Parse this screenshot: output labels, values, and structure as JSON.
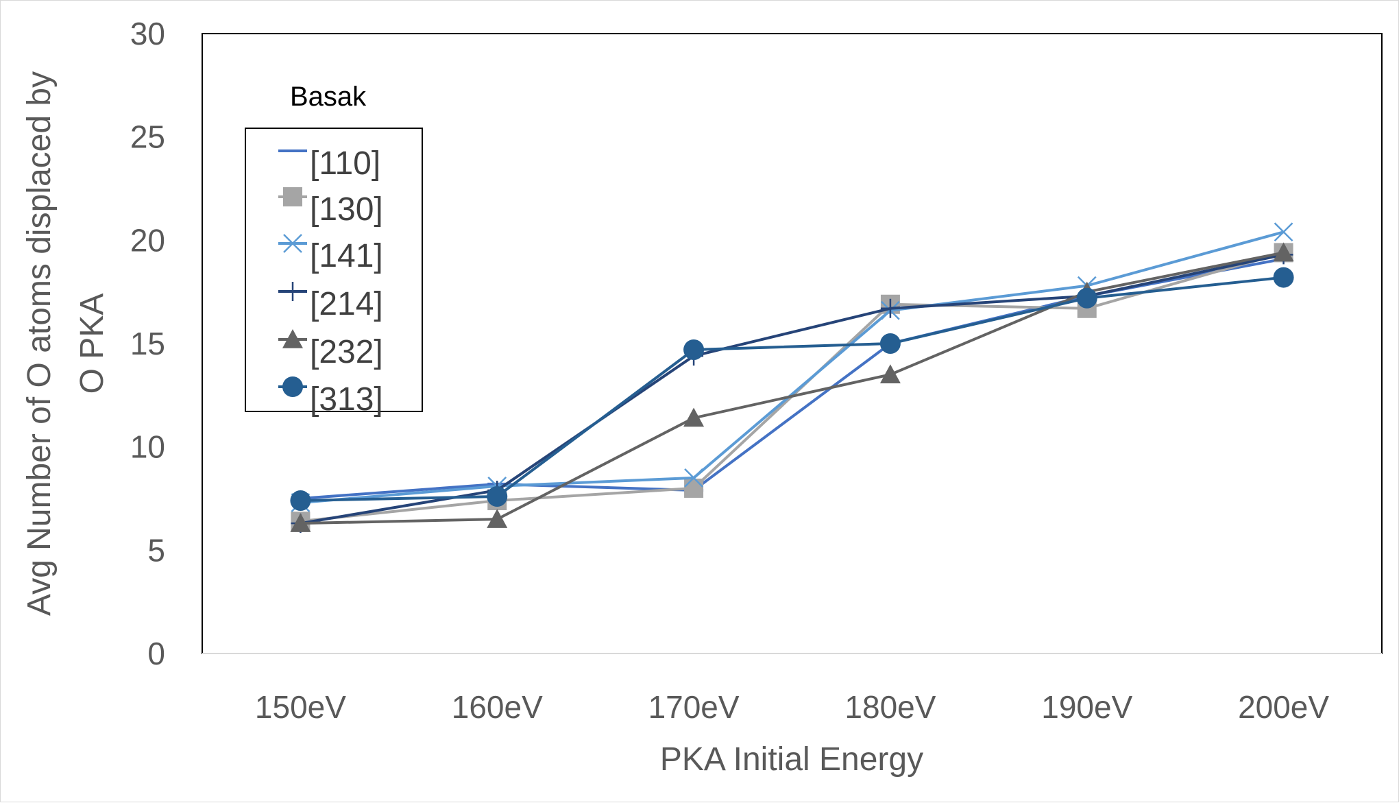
{
  "chart_data": {
    "type": "line",
    "categories": [
      "150eV",
      "160eV",
      "170eV",
      "180eV",
      "190eV",
      "200eV"
    ],
    "series": [
      {
        "name": "[110]",
        "values": [
          7.5,
          8.2,
          7.9,
          15.0,
          17.3,
          19.1
        ],
        "color": "#4472c4",
        "marker": "dash"
      },
      {
        "name": "[130]",
        "values": [
          6.4,
          7.4,
          8.0,
          16.9,
          16.7,
          19.4
        ],
        "color": "#a5a5a5",
        "marker": "square"
      },
      {
        "name": "[141]",
        "values": [
          7.3,
          8.1,
          8.5,
          16.6,
          17.8,
          20.4
        ],
        "color": "#5b9bd5",
        "marker": "x"
      },
      {
        "name": "[214]",
        "values": [
          6.3,
          7.9,
          14.4,
          16.7,
          17.3,
          19.3
        ],
        "color": "#264478",
        "marker": "plus"
      },
      {
        "name": "[232]",
        "values": [
          6.3,
          6.5,
          11.4,
          13.5,
          17.5,
          19.4
        ],
        "color": "#636363",
        "marker": "triangle"
      },
      {
        "name": "[313]",
        "values": [
          7.4,
          7.6,
          14.7,
          15.0,
          17.2,
          18.2
        ],
        "color": "#255e91",
        "marker": "circle"
      }
    ],
    "title": "",
    "xlabel": "PKA Initial Energy",
    "ylabel": "Avg Number of O atoms displaced by O PKA",
    "ylabel_lines": [
      "Avg Number of O atoms displaced by",
      "O PKA"
    ],
    "ylim": [
      0,
      30
    ],
    "yticks": [
      "0",
      "5",
      "10",
      "15",
      "20",
      "25",
      "30"
    ],
    "grid": false,
    "legend": {
      "title": "Basak",
      "placement": "top-left"
    }
  }
}
